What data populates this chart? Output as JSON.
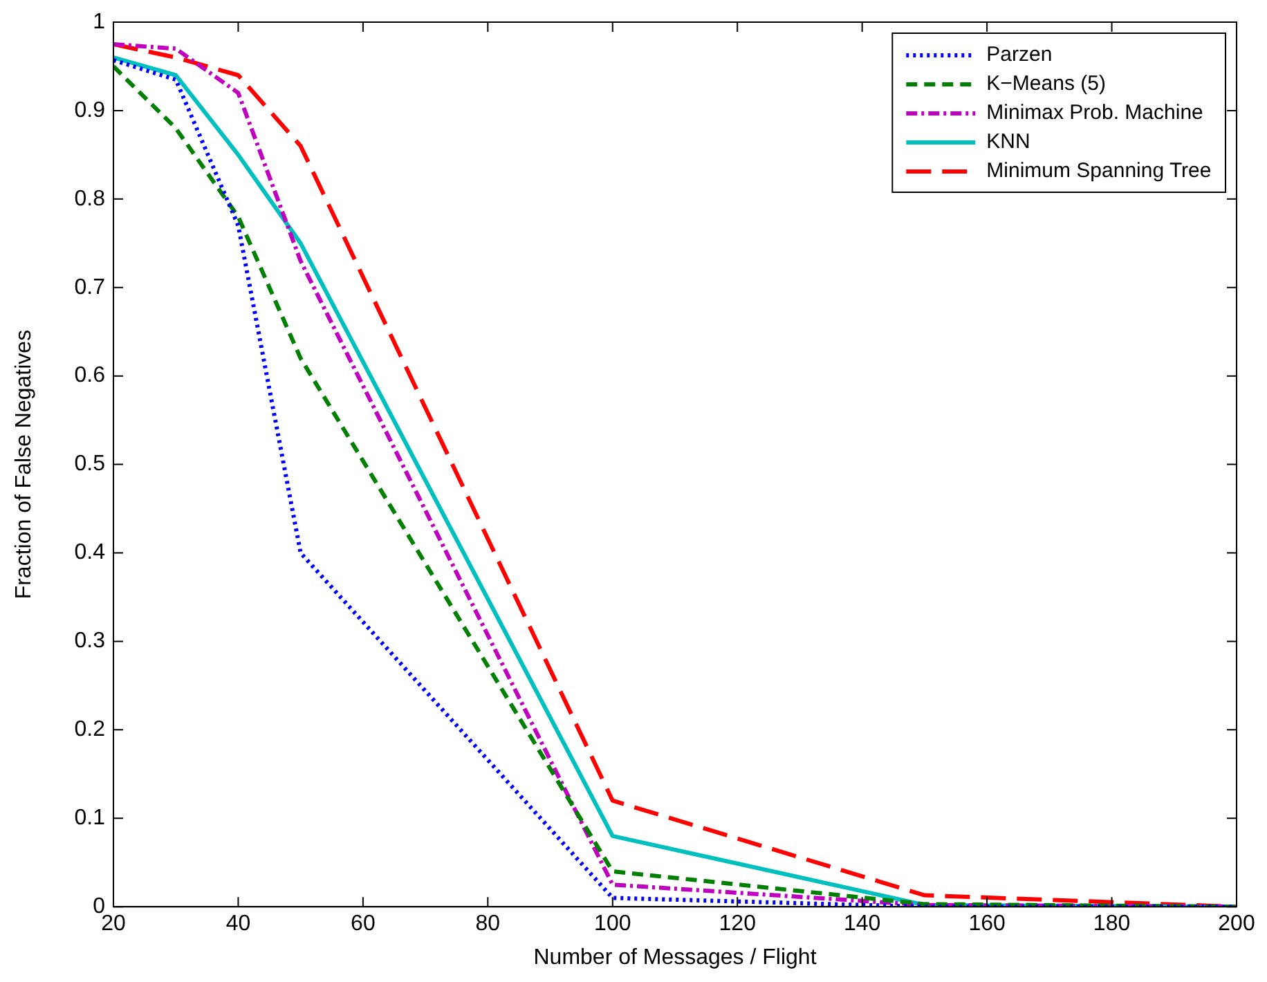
{
  "chart_data": {
    "type": "line",
    "xlabel": "Number of Messages / Flight",
    "ylabel": "Fraction of False Negatives",
    "x": [
      20,
      30,
      40,
      50,
      100,
      150,
      200
    ],
    "series": [
      {
        "name": "Parzen",
        "color": "#0000ff",
        "line_style": "dotted",
        "values": [
          0.957,
          0.935,
          0.77,
          0.4,
          0.01,
          0,
          0
        ]
      },
      {
        "name": "K−Means (5)",
        "color": "#008000",
        "line_style": "dashed",
        "values": [
          0.95,
          0.88,
          0.78,
          0.62,
          0.04,
          0.003,
          0
        ]
      },
      {
        "name": "Minimax Prob. Machine",
        "color": "#bf00bf",
        "line_style": "dashdot",
        "values": [
          0.975,
          0.97,
          0.92,
          0.73,
          0.025,
          0.002,
          0
        ]
      },
      {
        "name": "KNN",
        "color": "#00bfbf",
        "line_style": "solid",
        "values": [
          0.96,
          0.94,
          0.85,
          0.75,
          0.08,
          0.002,
          0
        ]
      },
      {
        "name": "Minimum Spanning Tree",
        "color": "#ff0000",
        "line_style": "longdash",
        "values": [
          0.975,
          0.96,
          0.94,
          0.86,
          0.12,
          0.013,
          0
        ]
      }
    ],
    "xlim": [
      20,
      200
    ],
    "xticks": [
      20,
      40,
      60,
      80,
      100,
      120,
      140,
      160,
      180,
      200
    ],
    "ylim": [
      0,
      1
    ],
    "yticks": [
      0,
      0.1,
      0.2,
      0.3,
      0.4,
      0.5,
      0.6,
      0.7,
      0.8,
      0.9,
      1
    ],
    "grid": false,
    "legend": "top right",
    "marker": "none"
  }
}
